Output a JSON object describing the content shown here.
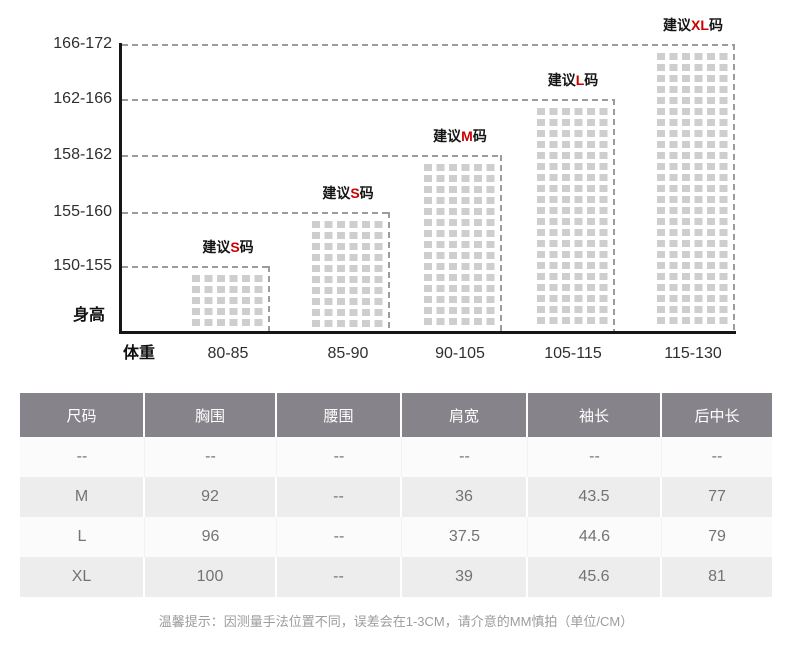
{
  "chart_data": {
    "type": "bar",
    "xlabel": "体重",
    "ylabel": "身高",
    "x_categories": [
      "80-85",
      "85-90",
      "90-105",
      "105-115",
      "115-130"
    ],
    "y_categories": [
      "150-155",
      "155-160",
      "158-162",
      "162-166",
      "166-172"
    ],
    "label_prefix": "建议",
    "label_suffix": "码",
    "bars": [
      {
        "weight": "80-85",
        "height_range": "150-155",
        "size": "S",
        "label": "建议S码",
        "level": 1
      },
      {
        "weight": "85-90",
        "height_range": "155-160",
        "size": "S",
        "label": "建议S码",
        "level": 2
      },
      {
        "weight": "90-105",
        "height_range": "158-162",
        "size": "M",
        "label": "建议M码",
        "level": 3
      },
      {
        "weight": "105-115",
        "height_range": "162-166",
        "size": "L",
        "label": "建议L码",
        "level": 4
      },
      {
        "weight": "115-130",
        "height_range": "166-172",
        "size": "XL",
        "label": "建议XL码",
        "level": 5
      }
    ],
    "legend_position": "none",
    "grid": "dashed-step-lines"
  },
  "size_table": {
    "headers": [
      "尺码",
      "胸围",
      "腰围",
      "肩宽",
      "袖长",
      "后中长"
    ],
    "rows": [
      [
        "--",
        "--",
        "--",
        "--",
        "--",
        "--"
      ],
      [
        "M",
        "92",
        "--",
        "36",
        "43.5",
        "77"
      ],
      [
        "L",
        "96",
        "--",
        "37.5",
        "44.6",
        "79"
      ],
      [
        "XL",
        "100",
        "--",
        "39",
        "45.6",
        "81"
      ]
    ]
  },
  "footer": {
    "note": "温馨提示：因测量手法位置不同，误差会在1-3CM，请介意的MM慎拍（单位/CM）"
  },
  "colors": {
    "accent_red": "#cc0000",
    "table_header_bg": "#87838a",
    "square_fill": "#cecece",
    "dashed_line": "#9c9c9c",
    "axis": "#161616"
  }
}
